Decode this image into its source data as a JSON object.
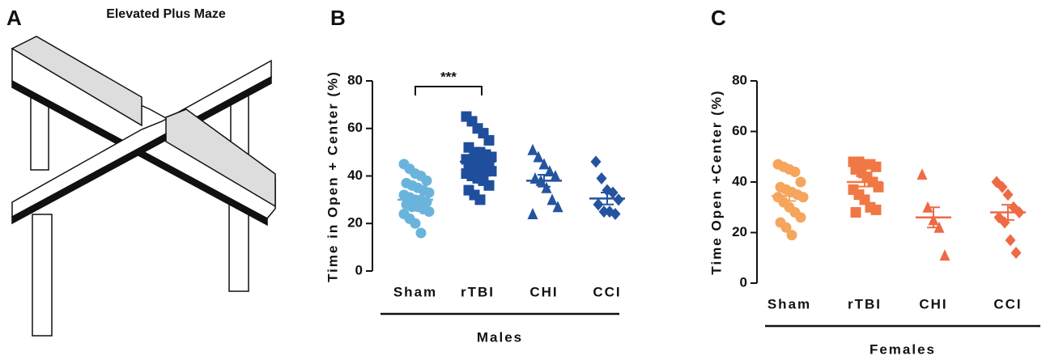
{
  "figure_a": {
    "label": "A",
    "title": "Elevated Plus Maze"
  },
  "chart_data": [
    {
      "type": "dotplot",
      "panel": "B",
      "ylabel": "Time in Open + Center (%)",
      "group_label": "Males",
      "categories": [
        "Sham",
        "rTBI",
        "CHI",
        "CCI"
      ],
      "colors": [
        "#6ab4dc",
        "#1f4e9c",
        "#2454a0",
        "#2454a0"
      ],
      "markers": [
        "circle",
        "square",
        "triangle",
        "diamond"
      ],
      "points": [
        [
          45,
          43,
          41,
          40,
          38,
          37,
          36,
          35,
          34,
          33,
          32,
          31,
          30,
          30,
          29,
          28,
          27,
          27,
          26,
          25,
          24,
          22,
          20,
          16
        ],
        [
          65,
          63,
          60,
          58,
          55,
          52,
          50,
          50,
          49,
          48,
          47,
          47,
          46,
          46,
          45,
          45,
          44,
          43,
          42,
          42,
          41,
          40,
          39,
          38,
          36,
          34,
          32,
          30
        ],
        [
          51,
          48,
          45,
          42,
          40,
          39,
          38,
          35,
          30,
          27,
          24
        ],
        [
          46,
          39,
          34,
          33,
          30,
          28,
          25,
          25,
          24
        ]
      ],
      "means": [
        30,
        46,
        38,
        30.5
      ],
      "sems": [
        1.5,
        1.5,
        2.5,
        2.5
      ],
      "annotation": "***",
      "ylim": [
        0,
        80
      ],
      "yticks": [
        0,
        20,
        40,
        60,
        80
      ]
    },
    {
      "type": "dotplot",
      "panel": "C",
      "ylabel": "Time Open +Center (%)",
      "group_label": "Females",
      "categories": [
        "Sham",
        "rTBI",
        "CHI",
        "CCI"
      ],
      "colors": [
        "#f6a55c",
        "#f07844",
        "#ee6a45",
        "#ee6a45"
      ],
      "markers": [
        "circle",
        "square",
        "triangle",
        "diamond"
      ],
      "points": [
        [
          47,
          46,
          45,
          44,
          40,
          38,
          37,
          36,
          35,
          34,
          34,
          32,
          30,
          28,
          26,
          24,
          22,
          19
        ],
        [
          48,
          48,
          47,
          47,
          46,
          45,
          44,
          42,
          40,
          38,
          37,
          35,
          33,
          30,
          29,
          28
        ],
        [
          43,
          30,
          25,
          22,
          11
        ],
        [
          40,
          38,
          35,
          30,
          28,
          26,
          24,
          17,
          12
        ]
      ],
      "means": [
        34.5,
        40,
        26,
        28
      ],
      "sems": [
        2,
        1.8,
        4,
        3
      ],
      "ylim": [
        0,
        80
      ],
      "yticks": [
        0,
        20,
        40,
        60,
        80
      ]
    }
  ]
}
